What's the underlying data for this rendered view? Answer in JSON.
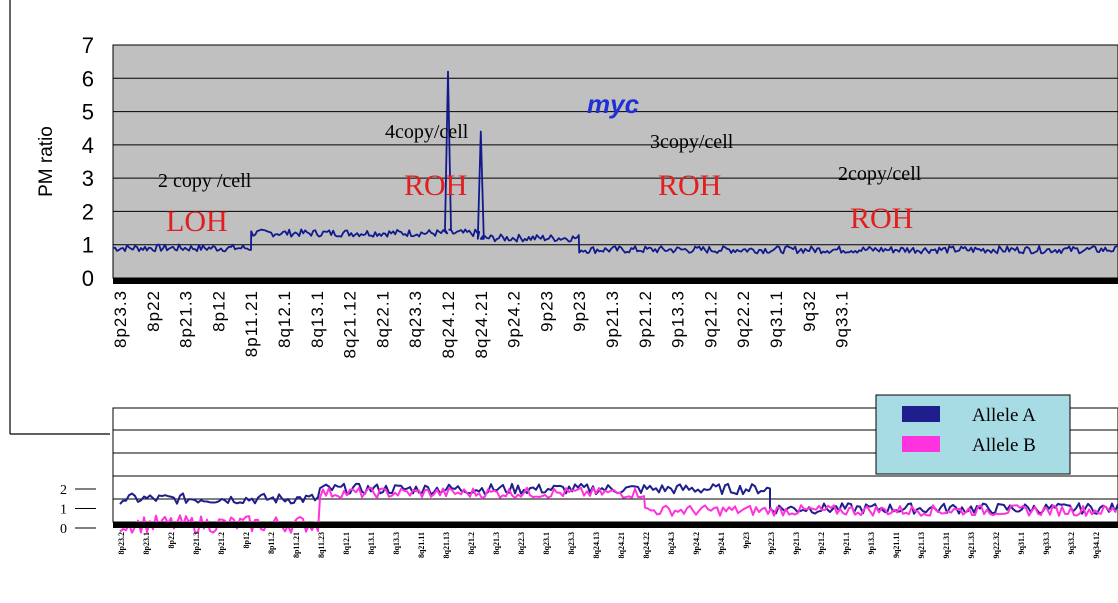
{
  "chart_data": [
    {
      "type": "line",
      "ylabel": "PM ratio",
      "ylim": [
        0,
        7
      ],
      "yticks": [
        "0",
        "1",
        "2",
        "3",
        "4",
        "5",
        "6",
        "7"
      ],
      "grid": true,
      "categories": [
        "8p23.3",
        "8p22",
        "8p21.3",
        "8p12",
        "8p11.21",
        "8q12.1",
        "8q13.1",
        "8q21.12",
        "8q22.1",
        "8q23.3",
        "8q24.12",
        "8q24.21",
        "9p24.2",
        "9p23",
        "9p23",
        "9p21.3",
        "9p21.2",
        "9p13.3",
        "9q21.2",
        "9q22.2",
        "9q31.1",
        "9q32",
        "9q33.1"
      ],
      "series": [
        {
          "color": "#101a8c",
          "segments": [
            {
              "from": "8p23.3",
              "to": "8p11.21",
              "value": 0.9
            },
            {
              "from": "8p11.21",
              "to": "8q24.21",
              "value": 1.35
            },
            {
              "from": "8q24.21",
              "to": "9p23",
              "value": 1.2
            },
            {
              "from": "9p23",
              "to": "9q33.1",
              "value": 0.85
            }
          ],
          "peaks": [
            {
              "at": "8q24.12",
              "value": 6.2
            },
            {
              "at": "8q24.21",
              "value": 4.4
            }
          ]
        }
      ],
      "annotations": [
        {
          "text": "2 copy /cell",
          "color": "black"
        },
        {
          "text": "LOH",
          "color": "red"
        },
        {
          "text": "4copy/cell",
          "color": "black"
        },
        {
          "text": "ROH",
          "color": "red"
        },
        {
          "text": "myc",
          "color": "blue"
        },
        {
          "text": "3copy/cell",
          "color": "black"
        },
        {
          "text": "ROH",
          "color": "red"
        },
        {
          "text": "2copy/cell",
          "color": "black"
        },
        {
          "text": "ROH",
          "color": "red"
        }
      ]
    },
    {
      "type": "line",
      "yticks": [
        "2",
        "1",
        "0"
      ],
      "legend_position": "top-right",
      "categories": [
        "8p23.2",
        "8p23.1",
        "8p22",
        "8p21.3",
        "8p21.2",
        "8p12",
        "8p11.2",
        "8p11.21",
        "8q11.23",
        "8q12.1",
        "8q13.1",
        "8q13.3",
        "8q21.11",
        "8q21.13",
        "8q21.2",
        "8q21.3",
        "8q22.3",
        "8q23.1",
        "8q23.3",
        "8q24.13",
        "8q24.21",
        "8q24.22",
        "8q24.3",
        "9p24.2",
        "9p24.1",
        "9p23",
        "9p22.3",
        "9p21.3",
        "9p21.2",
        "9p21.1",
        "9p13.3",
        "9q21.11",
        "9q21.13",
        "9q21.31",
        "9q21.33",
        "9q22.32",
        "9q31.1",
        "9q33.3",
        "9q33.2",
        "9q34.12"
      ],
      "series": [
        {
          "name": "Allele A",
          "color": "#1e1e8c",
          "segments": [
            {
              "from_index": 0,
              "to_index": 8,
              "value": 1.5
            },
            {
              "from_index": 8,
              "to_index": 26,
              "value": 2.0
            },
            {
              "from_index": 26,
              "to_index": 39,
              "value": 1.0
            }
          ]
        },
        {
          "name": "Allele B",
          "color": "#ff33dd",
          "segments": [
            {
              "from_index": 0,
              "to_index": 8,
              "value": 0.2
            },
            {
              "from_index": 8,
              "to_index": 21,
              "value": 1.8
            },
            {
              "from_index": 21,
              "to_index": 39,
              "value": 0.9
            }
          ]
        }
      ]
    }
  ]
}
